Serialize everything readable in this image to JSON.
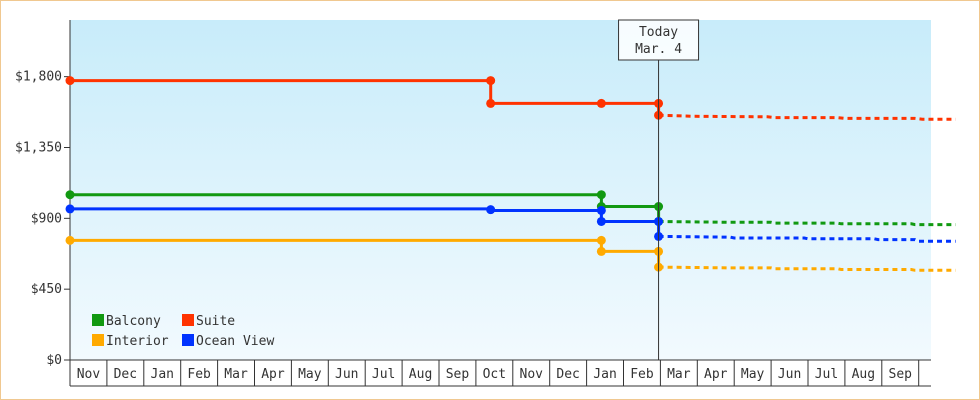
{
  "chart_data": {
    "type": "line",
    "line_shape": "step",
    "yticks": [
      "$0",
      "$450",
      "$900",
      "$1,350",
      "$1,800"
    ],
    "ylim": [
      0,
      2160
    ],
    "x_months": [
      "Nov",
      "Dec",
      "Jan",
      "Feb",
      "Mar",
      "Apr",
      "May",
      "Jun",
      "Jul",
      "Aug",
      "Sep",
      "Oct",
      "Nov",
      "Dec",
      "Jan",
      "Feb",
      "Mar",
      "Apr",
      "May",
      "Jun",
      "Jul",
      "Aug",
      "Sep"
    ],
    "today_marker": {
      "line1": "Today",
      "line2": "Mar. 4",
      "month_pos": 15.95
    },
    "legend_position": "bottom-left",
    "grid": false,
    "series": [
      {
        "name": "Balcony",
        "color": "#119911",
        "actual": [
          [
            0,
            1050
          ],
          [
            14.4,
            1050
          ],
          [
            14.4,
            975
          ],
          [
            15.95,
            975
          ],
          [
            15.95,
            880
          ]
        ],
        "markers": [
          [
            0,
            1050
          ],
          [
            14.4,
            1050
          ],
          [
            14.4,
            975
          ],
          [
            15.95,
            975
          ],
          [
            15.95,
            880
          ]
        ],
        "forecast": [
          [
            15.95,
            880
          ],
          [
            17.9,
            875
          ],
          [
            19.0,
            875
          ],
          [
            19.1,
            870
          ],
          [
            20.8,
            870
          ],
          [
            20.9,
            865
          ],
          [
            22.8,
            865
          ],
          [
            22.9,
            860
          ],
          [
            24.0,
            860
          ]
        ]
      },
      {
        "name": "Suite",
        "color": "#ff3300",
        "actual": [
          [
            0,
            1775
          ],
          [
            11.4,
            1775
          ],
          [
            11.4,
            1630
          ],
          [
            15.95,
            1630
          ],
          [
            15.95,
            1555
          ]
        ],
        "markers": [
          [
            0,
            1775
          ],
          [
            11.4,
            1775
          ],
          [
            11.4,
            1630
          ],
          [
            14.4,
            1630
          ],
          [
            15.95,
            1630
          ],
          [
            15.95,
            1555
          ]
        ],
        "forecast": [
          [
            15.95,
            1555
          ],
          [
            16.9,
            1548
          ],
          [
            18.9,
            1545
          ],
          [
            19.1,
            1540
          ],
          [
            20.8,
            1540
          ],
          [
            21.0,
            1535
          ],
          [
            22.9,
            1535
          ],
          [
            23.1,
            1530
          ],
          [
            24.0,
            1530
          ]
        ]
      },
      {
        "name": "Interior",
        "color": "#ffaa00",
        "actual": [
          [
            0,
            760
          ],
          [
            14.4,
            760
          ],
          [
            14.4,
            690
          ],
          [
            15.95,
            690
          ],
          [
            15.95,
            590
          ]
        ],
        "markers": [
          [
            0,
            760
          ],
          [
            14.4,
            760
          ],
          [
            14.4,
            690
          ],
          [
            15.95,
            690
          ],
          [
            15.95,
            590
          ]
        ],
        "forecast": [
          [
            15.95,
            590
          ],
          [
            17.9,
            585
          ],
          [
            19.0,
            585
          ],
          [
            19.1,
            580
          ],
          [
            20.8,
            580
          ],
          [
            20.9,
            575
          ],
          [
            22.8,
            575
          ],
          [
            22.9,
            570
          ],
          [
            24.0,
            570
          ]
        ]
      },
      {
        "name": "Ocean View",
        "color": "#0033ff",
        "actual": [
          [
            0,
            960
          ],
          [
            11.4,
            960
          ],
          [
            11.4,
            950
          ],
          [
            14.4,
            950
          ],
          [
            14.4,
            880
          ],
          [
            15.95,
            880
          ],
          [
            15.95,
            785
          ]
        ],
        "markers": [
          [
            0,
            960
          ],
          [
            11.4,
            955
          ],
          [
            14.4,
            950
          ],
          [
            14.4,
            880
          ],
          [
            15.95,
            880
          ],
          [
            15.95,
            785
          ]
        ],
        "forecast": [
          [
            15.95,
            785
          ],
          [
            17.9,
            780
          ],
          [
            18.0,
            775
          ],
          [
            19.9,
            775
          ],
          [
            20.0,
            770
          ],
          [
            21.8,
            770
          ],
          [
            21.9,
            765
          ],
          [
            22.9,
            765
          ],
          [
            23.0,
            755
          ],
          [
            24.0,
            755
          ]
        ]
      }
    ],
    "legend": [
      {
        "name": "Balcony",
        "color": "#119911"
      },
      {
        "name": "Suite",
        "color": "#ff3300"
      },
      {
        "name": "Interior",
        "color": "#ffaa00"
      },
      {
        "name": "Ocean View",
        "color": "#0033ff"
      }
    ]
  }
}
